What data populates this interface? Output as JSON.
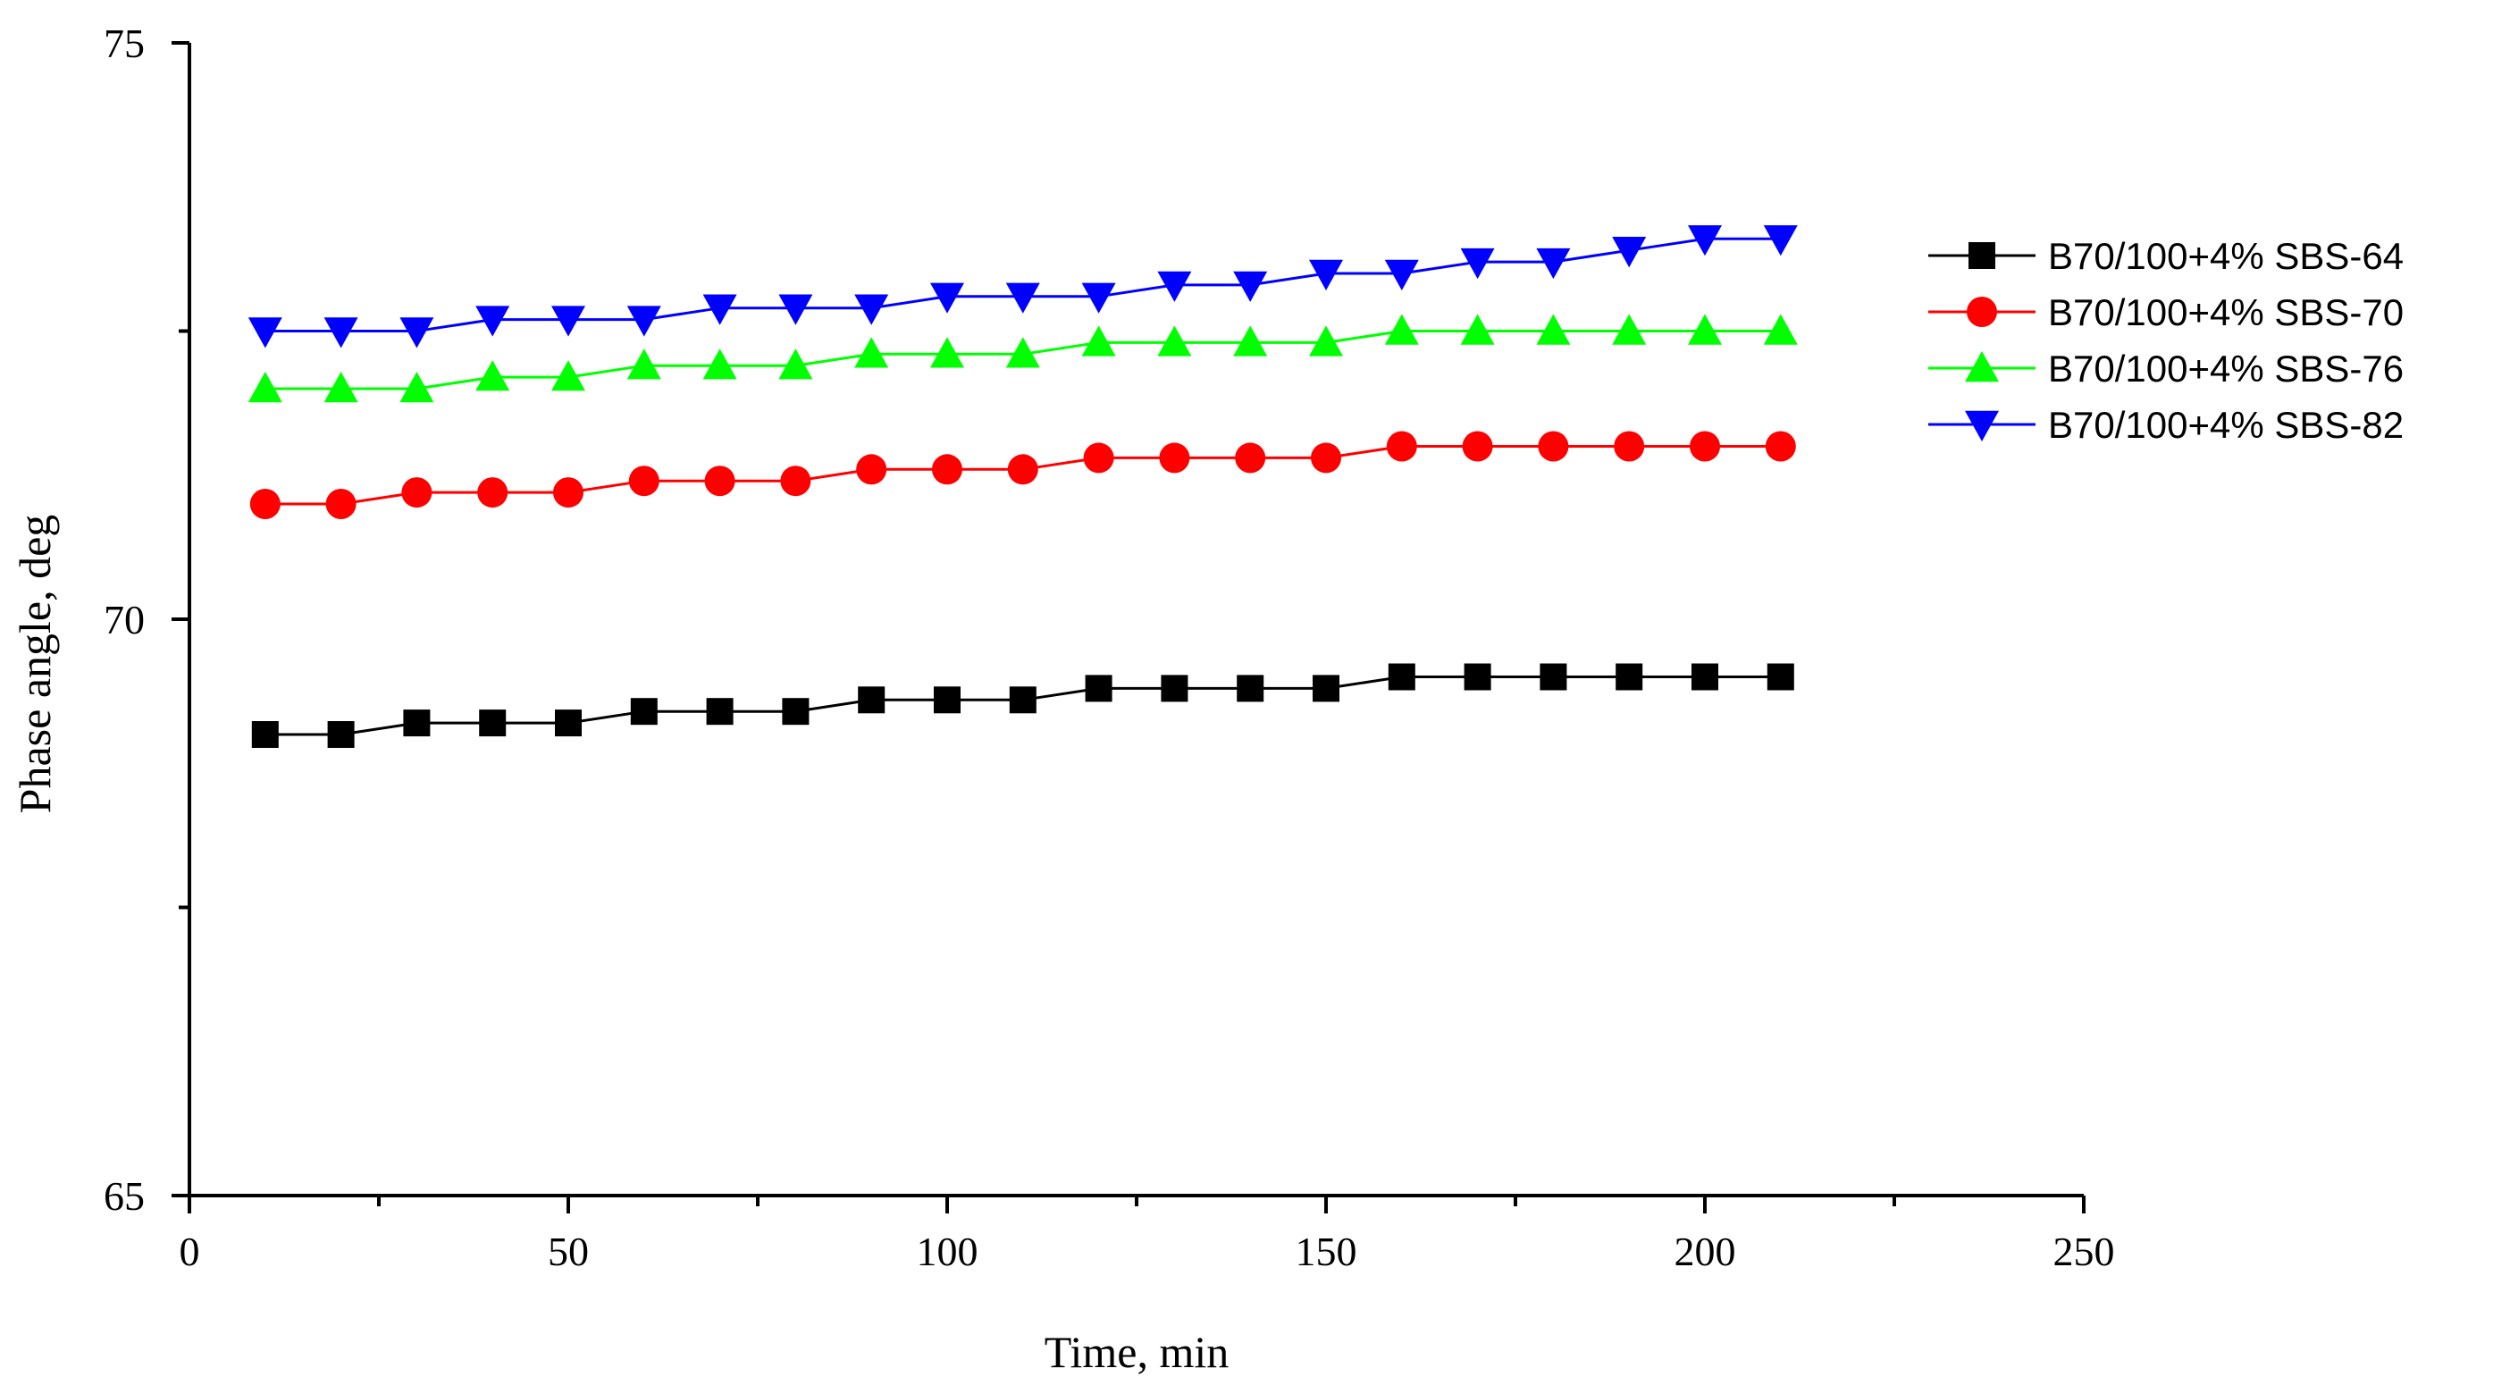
{
  "chart_data": {
    "type": "line",
    "title": "",
    "xlabel": "Time, min",
    "ylabel": "Phase angle, deg",
    "xlim": [
      0,
      250
    ],
    "ylim": [
      65,
      75
    ],
    "x_ticks": [
      0,
      50,
      100,
      150,
      200,
      250
    ],
    "y_ticks": [
      65,
      70,
      75
    ],
    "x_minor_step": 25,
    "y_minor_step": 2.5,
    "grid": false,
    "legend_position": "right",
    "x": [
      10,
      20,
      30,
      40,
      50,
      60,
      70,
      80,
      90,
      100,
      110,
      120,
      130,
      140,
      150,
      160,
      170,
      180,
      190,
      200,
      210
    ],
    "series": [
      {
        "name": "B70/100+4% SBS-64",
        "color": "#000000",
        "marker": "square",
        "values": [
          69.0,
          69.0,
          69.1,
          69.1,
          69.1,
          69.2,
          69.2,
          69.2,
          69.3,
          69.3,
          69.3,
          69.4,
          69.4,
          69.4,
          69.4,
          69.5,
          69.5,
          69.5,
          69.5,
          69.5,
          69.5
        ]
      },
      {
        "name": "B70/100+4% SBS-70",
        "color": "#ff0000",
        "marker": "circle",
        "values": [
          71.0,
          71.0,
          71.1,
          71.1,
          71.1,
          71.2,
          71.2,
          71.2,
          71.3,
          71.3,
          71.3,
          71.4,
          71.4,
          71.4,
          71.4,
          71.5,
          71.5,
          71.5,
          71.5,
          71.5,
          71.5
        ]
      },
      {
        "name": "B70/100+4% SBS-76",
        "color": "#00ff00",
        "marker": "triangle-up",
        "values": [
          72.0,
          72.0,
          72.0,
          72.1,
          72.1,
          72.2,
          72.2,
          72.2,
          72.3,
          72.3,
          72.3,
          72.4,
          72.4,
          72.4,
          72.4,
          72.5,
          72.5,
          72.5,
          72.5,
          72.5,
          72.5
        ]
      },
      {
        "name": "B70/100+4% SBS-82",
        "color": "#0000ff",
        "marker": "triangle-down",
        "values": [
          72.5,
          72.5,
          72.5,
          72.6,
          72.6,
          72.6,
          72.7,
          72.7,
          72.7,
          72.8,
          72.8,
          72.8,
          72.9,
          72.9,
          73.0,
          73.0,
          73.1,
          73.1,
          73.2,
          73.3,
          73.3
        ]
      }
    ]
  }
}
